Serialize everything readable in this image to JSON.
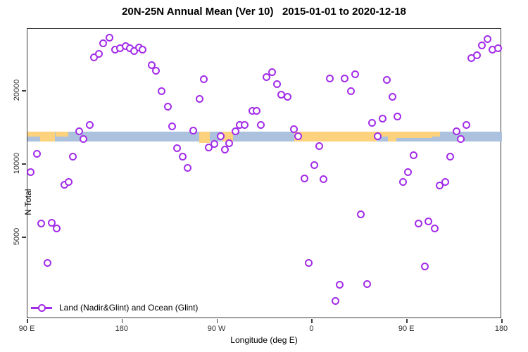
{
  "chart_data": {
    "type": "scatter",
    "title": "20N-25N Annual Mean (Ver 10)   2015-01-01 to 2020-12-18",
    "xlabel": "Longitude (deg E)",
    "ylabel": "N Total",
    "x_axis": {
      "note": "longitude wrapping eastward from 90E to 180 (span 450 deg)",
      "lim": [
        90,
        540
      ],
      "ticks": [
        {
          "pos": 90,
          "label": "90 E"
        },
        {
          "pos": 180,
          "label": "180"
        },
        {
          "pos": 270,
          "label": "90 W"
        },
        {
          "pos": 360,
          "label": "0"
        },
        {
          "pos": 450,
          "label": "90 E"
        },
        {
          "pos": 540,
          "label": "180"
        }
      ]
    },
    "y_axis": {
      "scale": "log",
      "lim": [
        2310,
        35960
      ],
      "ticks": [
        {
          "pos": 5000,
          "label": "5000"
        },
        {
          "pos": 10000,
          "label": "10000"
        },
        {
          "pos": 20000,
          "label": "20000"
        }
      ]
    },
    "grid": false,
    "legend": {
      "label": "Land (Nadir&Glint) and Ocean (Glint)",
      "position": "bottom-left"
    },
    "colors": {
      "point": "#A32CE8",
      "ocean": "#ABC1DD",
      "land": "#FCD27E",
      "axis": "#3D3D3D"
    },
    "map_band": {
      "n_top": 13600,
      "n_bottom": 12400,
      "land_segments": [
        {
          "s": 90,
          "e": 116,
          "y": 0,
          "h": 1
        },
        {
          "s": 117,
          "e": 129,
          "y": 0,
          "h": 0.5
        },
        {
          "s": 253,
          "e": 263,
          "y": 0,
          "h": 1.15
        },
        {
          "s": 275,
          "e": 285,
          "y": 0,
          "h": 1
        },
        {
          "s": 343,
          "e": 421,
          "y": 0,
          "h": 1
        },
        {
          "s": 421,
          "e": 432,
          "y": 0,
          "h": 0.55
        },
        {
          "s": 432,
          "e": 440,
          "y": 0,
          "h": 1
        },
        {
          "s": 440,
          "e": 474,
          "y": 0,
          "h": 0.65
        },
        {
          "s": 474,
          "e": 481,
          "y": 0,
          "h": 0.5
        }
      ],
      "ocean_notches": [
        {
          "s": 90,
          "e": 102,
          "y": 0.55,
          "h": 0.45
        }
      ]
    },
    "series": [
      {
        "name": "Land (Nadir&Glint) and Ocean (Glint)",
        "points": [
          [
            93,
            9290
          ],
          [
            99,
            10980
          ],
          [
            103,
            5710
          ],
          [
            109,
            3910
          ],
          [
            113,
            5750
          ],
          [
            118,
            5450
          ],
          [
            125,
            8240
          ],
          [
            129,
            8410
          ],
          [
            133,
            10690
          ],
          [
            139,
            13590
          ],
          [
            143,
            12630
          ],
          [
            149,
            14520
          ],
          [
            153,
            27540
          ],
          [
            158,
            28290
          ],
          [
            162,
            31260
          ],
          [
            168,
            32970
          ],
          [
            173,
            29440
          ],
          [
            178,
            29850
          ],
          [
            183,
            30470
          ],
          [
            187,
            29850
          ],
          [
            191,
            29240
          ],
          [
            196,
            30060
          ],
          [
            199,
            29440
          ],
          [
            208,
            25430
          ],
          [
            212,
            24260
          ],
          [
            217,
            20000
          ],
          [
            223,
            17160
          ],
          [
            227,
            14330
          ],
          [
            232,
            11580
          ],
          [
            237,
            10690
          ],
          [
            242,
            9610
          ],
          [
            247,
            13680
          ],
          [
            253,
            18470
          ],
          [
            257,
            22390
          ],
          [
            262,
            11730
          ],
          [
            267,
            12130
          ],
          [
            273,
            12970
          ],
          [
            277,
            11500
          ],
          [
            281,
            12210
          ],
          [
            287,
            13590
          ],
          [
            291,
            14430
          ],
          [
            296,
            14520
          ],
          [
            303,
            16490
          ],
          [
            307,
            16490
          ],
          [
            311,
            14520
          ],
          [
            317,
            22850
          ],
          [
            322,
            23940
          ],
          [
            327,
            21370
          ],
          [
            331,
            19340
          ],
          [
            337,
            18960
          ],
          [
            343,
            13950
          ],
          [
            347,
            13050
          ],
          [
            353,
            8750
          ],
          [
            357,
            3910
          ],
          [
            362,
            9930
          ],
          [
            367,
            11890
          ],
          [
            371,
            8690
          ],
          [
            377,
            22540
          ],
          [
            382,
            2740
          ],
          [
            386,
            3180
          ],
          [
            391,
            22540
          ],
          [
            397,
            19870
          ],
          [
            401,
            23460
          ],
          [
            406,
            6190
          ],
          [
            412,
            3200
          ],
          [
            417,
            14720
          ],
          [
            422,
            12970
          ],
          [
            427,
            15320
          ],
          [
            431,
            22240
          ],
          [
            436,
            18960
          ],
          [
            441,
            15730
          ],
          [
            446,
            8410
          ],
          [
            451,
            9290
          ],
          [
            456,
            10900
          ],
          [
            461,
            5710
          ],
          [
            467,
            3800
          ],
          [
            470,
            5790
          ],
          [
            476,
            5450
          ],
          [
            481,
            8140
          ],
          [
            486,
            8410
          ],
          [
            491,
            10690
          ],
          [
            497,
            13590
          ],
          [
            501,
            12710
          ],
          [
            506,
            14520
          ],
          [
            511,
            27350
          ],
          [
            516,
            28090
          ],
          [
            521,
            30820
          ],
          [
            526,
            32540
          ],
          [
            531,
            29440
          ],
          [
            536,
            29850
          ]
        ]
      }
    ]
  }
}
